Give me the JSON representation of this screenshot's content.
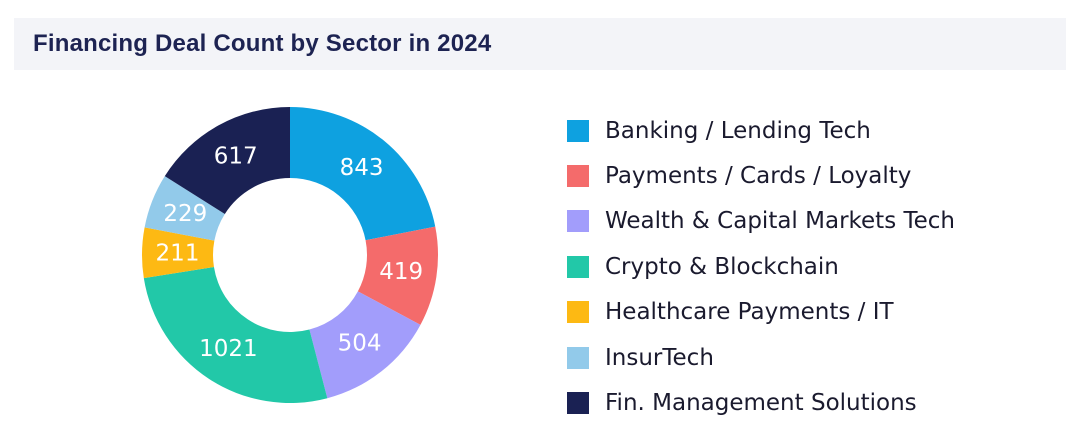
{
  "chart_data": {
    "type": "pie",
    "variant": "donut",
    "title": "Financing Deal Count by Sector in 2024",
    "categories": [
      "Banking / Lending Tech",
      "Payments / Cards / Loyalty",
      "Wealth & Capital Markets Tech",
      "Crypto & Blockchain",
      "Healthcare Payments / IT",
      "InsurTech",
      "Fin. Management Solutions"
    ],
    "values": [
      843,
      419,
      504,
      1021,
      211,
      229,
      617
    ],
    "colors": [
      "#0ea1e0",
      "#f46b6b",
      "#a29dfb",
      "#22c8a8",
      "#fdb913",
      "#92caea",
      "#1a2153"
    ],
    "legend_position": "right",
    "start_angle": "top, clockwise"
  }
}
